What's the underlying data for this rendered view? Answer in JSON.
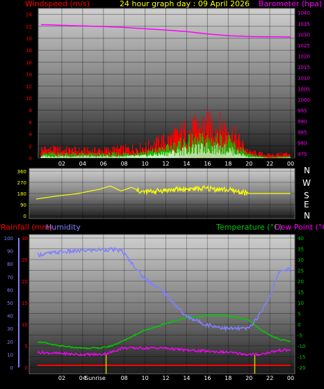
{
  "colors": {
    "background": "#000000",
    "wind_gust": "#ff0000",
    "wind_avg": "#00cc00",
    "wind_low": "#ccffcc",
    "barometer": "#ff00ff",
    "direction": "#ffff00",
    "rain": "#ff0000",
    "humidity": "#8080ff",
    "temperature": "#00cc00",
    "dewpoint": "#ff00ff",
    "title": "#ffff00",
    "tick": "#ffffff",
    "sunrise_marker": "#cccc00"
  },
  "chart_data": [
    {
      "type": "line",
      "name": "wind-barometer",
      "title": "24 hour graph day : 09 April 2026",
      "ylabel_left": "Windspeed (m/s)",
      "ylabel_right": "Barometer (hpa)",
      "x_ticks": [
        "02",
        "04",
        "06",
        "08",
        "10",
        "12",
        "14",
        "16",
        "18",
        "20",
        "22",
        "00"
      ],
      "y_left_ticks": [
        "0",
        "2",
        "4",
        "6",
        "8",
        "10",
        "12",
        "14",
        "16",
        "18",
        "20",
        "22",
        "24"
      ],
      "y_left_range": [
        0,
        25
      ],
      "y_right_ticks": [
        "975",
        "980",
        "985",
        "990",
        "995",
        "1000",
        "1005",
        "1010",
        "1015",
        "1020",
        "1025",
        "1030",
        "1035",
        "1040"
      ],
      "y_right_range": [
        973,
        1042
      ],
      "x_hours": [
        0,
        2,
        4,
        6,
        8,
        10,
        12,
        14,
        16,
        18,
        20,
        22,
        24
      ],
      "gust": [
        1.5,
        1.4,
        1.2,
        1.3,
        1.5,
        1.8,
        3.0,
        4.5,
        5.5,
        5.0,
        1.0,
        0.5,
        0.8
      ],
      "avg": [
        0.7,
        0.7,
        0.6,
        0.6,
        0.7,
        0.9,
        1.5,
        2.6,
        3.0,
        2.7,
        0.5,
        0.1,
        0.3
      ],
      "low": [
        0.3,
        0.3,
        0.3,
        0.3,
        0.3,
        0.4,
        0.8,
        1.4,
        1.8,
        1.5,
        0.2,
        0.0,
        0.1
      ],
      "barometer": [
        1034.5,
        1034.2,
        1033.9,
        1033.6,
        1033.2,
        1032.6,
        1032.0,
        1031.3,
        1030.2,
        1029.4,
        1029.0,
        1028.9,
        1028.8
      ]
    },
    {
      "type": "line",
      "name": "wind-direction",
      "y_ticks": [
        "360",
        "270",
        "180",
        "90",
        "0"
      ],
      "y_range": [
        0,
        360
      ],
      "compass": [
        "N",
        "W",
        "S",
        "E",
        "N"
      ],
      "x_hours": [
        0,
        2,
        4,
        6,
        7,
        8,
        9,
        10,
        12,
        14,
        16,
        18,
        20,
        22,
        24
      ],
      "direction": [
        135,
        160,
        180,
        215,
        240,
        200,
        230,
        190,
        205,
        215,
        220,
        210,
        180,
        180,
        180
      ]
    },
    {
      "type": "line",
      "name": "rain-humidity-temperature",
      "ylabel_left_rain": "Rainfall (mm)",
      "ylabel_left_humidity": "Humidity",
      "ylabel_right_temp": "Temperature (°C)",
      "ylabel_right_dew": "Dew Point (°C)",
      "sunrise_label": "Sunrise",
      "sunrise_hour": 6.5,
      "sunset_hour": 20.6,
      "x_ticks": [
        "02",
        "04",
        "06",
        "08",
        "10",
        "12",
        "14",
        "16",
        "18",
        "20",
        "22",
        "00"
      ],
      "rain_ticks": [
        "0",
        "5",
        "10",
        "15",
        "20",
        "25",
        "30"
      ],
      "rain_range": [
        0,
        30
      ],
      "humidity_ticks": [
        "0",
        "10",
        "20",
        "30",
        "40",
        "50",
        "60",
        "70",
        "80",
        "90",
        "100"
      ],
      "humidity_range": [
        0,
        100
      ],
      "temp_ticks": [
        "-20",
        "-15",
        "-10",
        "-5",
        "0",
        "5",
        "10",
        "15",
        "20",
        "25",
        "30",
        "35",
        "40"
      ],
      "temp_range": [
        -20,
        40
      ],
      "x_hours": [
        0,
        2,
        4,
        6,
        7,
        8,
        10,
        12,
        14,
        16,
        18,
        20,
        21,
        22,
        23,
        24
      ],
      "humidity": [
        87,
        89,
        90,
        91,
        91,
        90,
        70,
        58,
        40,
        33,
        30,
        30,
        40,
        55,
        75,
        76
      ],
      "temperature": [
        -8,
        -10,
        -11,
        -11,
        -10,
        -8,
        -3,
        0,
        3,
        4,
        4,
        2,
        -2,
        -5,
        -7,
        -8
      ],
      "dewpoint": [
        -13,
        -13.5,
        -14,
        -14,
        -13,
        -11,
        -11,
        -11,
        -12,
        -12.5,
        -13,
        -14,
        -14,
        -13,
        -12,
        -12
      ],
      "rain": [
        0.5,
        0.5,
        0.5,
        0.5,
        0.5,
        0.5,
        0.5,
        0.5,
        0.5,
        0.5,
        0.5,
        0.5,
        0.5,
        0.5,
        0.5,
        0.5
      ]
    }
  ]
}
